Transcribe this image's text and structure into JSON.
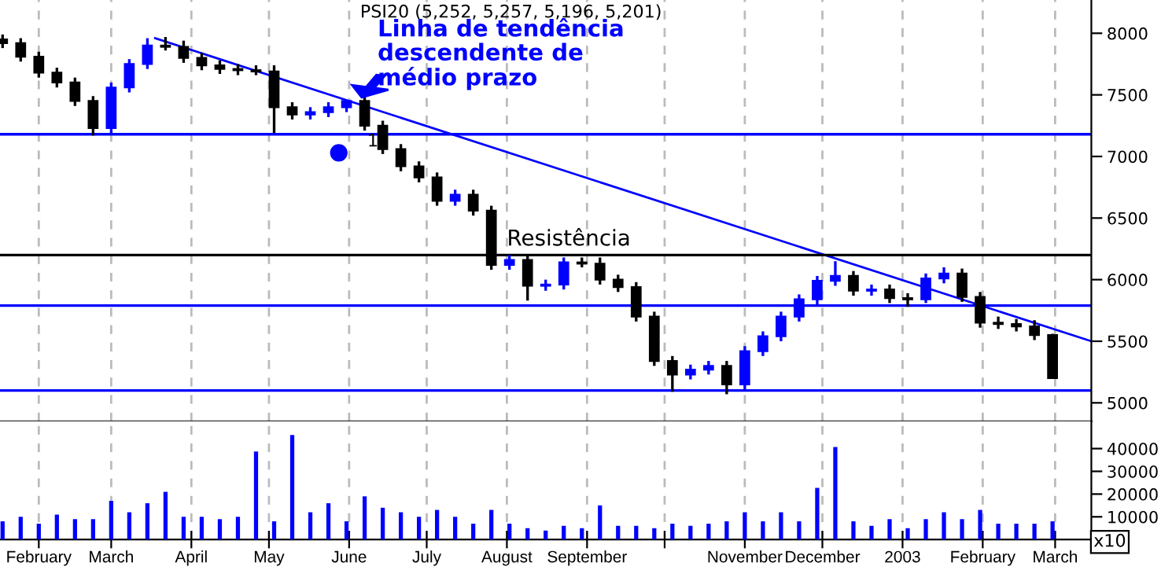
{
  "chart_data": [
    {
      "type": "candlestick",
      "title": "PSI20 (5,252, 5,257, 5,196, 5,201)",
      "x": [
        "2002-01-18",
        "2002-01-25",
        "2002-02-01",
        "2002-02-08",
        "2002-02-15",
        "2002-02-22",
        "2002-03-01",
        "2002-03-08",
        "2002-03-15",
        "2002-03-22",
        "2002-03-29",
        "2002-04-05",
        "2002-04-12",
        "2002-04-19",
        "2002-04-26",
        "2002-05-03",
        "2002-05-10",
        "2002-05-17",
        "2002-05-24",
        "2002-05-31",
        "2002-06-07",
        "2002-06-14",
        "2002-06-21",
        "2002-06-28",
        "2002-07-05",
        "2002-07-12",
        "2002-07-19",
        "2002-07-26",
        "2002-08-02",
        "2002-08-09",
        "2002-08-16",
        "2002-08-23",
        "2002-08-30",
        "2002-09-06",
        "2002-09-13",
        "2002-09-20",
        "2002-09-27",
        "2002-10-04",
        "2002-10-11",
        "2002-10-18",
        "2002-10-25",
        "2002-11-01",
        "2002-11-08",
        "2002-11-15",
        "2002-11-22",
        "2002-11-29",
        "2002-12-06",
        "2002-12-13",
        "2002-12-20",
        "2002-12-27",
        "2003-01-03",
        "2003-01-10",
        "2003-01-17",
        "2003-01-24",
        "2003-01-31",
        "2003-02-07",
        "2003-02-14",
        "2003-02-21",
        "2003-02-28"
      ],
      "ohlc": [
        [
          7950,
          7990,
          7880,
          7920
        ],
        [
          7920,
          7960,
          7770,
          7810
        ],
        [
          7810,
          7850,
          7640,
          7680
        ],
        [
          7680,
          7720,
          7560,
          7600
        ],
        [
          7600,
          7640,
          7410,
          7450
        ],
        [
          7450,
          7490,
          7170,
          7230
        ],
        [
          7230,
          7600,
          7190,
          7560
        ],
        [
          7560,
          7790,
          7520,
          7750
        ],
        [
          7750,
          7960,
          7710,
          7900
        ],
        [
          7900,
          7970,
          7860,
          7890
        ],
        [
          7890,
          7940,
          7760,
          7800
        ],
        [
          7800,
          7840,
          7700,
          7740
        ],
        [
          7740,
          7780,
          7670,
          7710
        ],
        [
          7710,
          7750,
          7660,
          7700
        ],
        [
          7700,
          7740,
          7660,
          7690
        ],
        [
          7690,
          7740,
          7190,
          7400
        ],
        [
          7400,
          7440,
          7300,
          7340
        ],
        [
          7340,
          7400,
          7300,
          7360
        ],
        [
          7360,
          7440,
          7320,
          7400
        ],
        [
          7400,
          7460,
          7360,
          7450
        ],
        [
          7450,
          7490,
          7210,
          7250
        ],
        [
          7250,
          7290,
          7020,
          7060
        ],
        [
          7060,
          7100,
          6880,
          6920
        ],
        [
          6920,
          6960,
          6790,
          6830
        ],
        [
          6830,
          6870,
          6600,
          6640
        ],
        [
          6640,
          6730,
          6600,
          6690
        ],
        [
          6690,
          6730,
          6520,
          6560
        ],
        [
          6560,
          6600,
          6080,
          6120
        ],
        [
          6120,
          6200,
          6080,
          6160
        ],
        [
          6160,
          6200,
          5830,
          5950
        ],
        [
          5950,
          6000,
          5910,
          5960
        ],
        [
          5960,
          6180,
          5920,
          6140
        ],
        [
          6140,
          6180,
          6100,
          6130
        ],
        [
          6130,
          6180,
          5960,
          6000
        ],
        [
          6000,
          6040,
          5900,
          5940
        ],
        [
          5940,
          5980,
          5660,
          5700
        ],
        [
          5700,
          5740,
          5300,
          5340
        ],
        [
          5340,
          5380,
          5090,
          5230
        ],
        [
          5230,
          5310,
          5190,
          5270
        ],
        [
          5270,
          5340,
          5230,
          5300
        ],
        [
          5300,
          5340,
          5070,
          5150
        ],
        [
          5150,
          5460,
          5110,
          5420
        ],
        [
          5420,
          5580,
          5380,
          5540
        ],
        [
          5540,
          5740,
          5500,
          5700
        ],
        [
          5700,
          5880,
          5660,
          5840
        ],
        [
          5840,
          6030,
          5800,
          5990
        ],
        [
          5990,
          6150,
          5950,
          6030
        ],
        [
          6030,
          6070,
          5870,
          5910
        ],
        [
          5910,
          5960,
          5870,
          5920
        ],
        [
          5920,
          5960,
          5810,
          5850
        ],
        [
          5850,
          5890,
          5780,
          5840
        ],
        [
          5840,
          6050,
          5810,
          6010
        ],
        [
          6010,
          6100,
          5970,
          6050
        ],
        [
          6050,
          6090,
          5820,
          5860
        ],
        [
          5860,
          5900,
          5610,
          5650
        ],
        [
          5650,
          5700,
          5600,
          5640
        ],
        [
          5640,
          5680,
          5580,
          5620
        ],
        [
          5620,
          5670,
          5510,
          5550
        ],
        [
          5550,
          5560,
          5196,
          5201
        ]
      ],
      "colors": [
        "#000000",
        "#000000",
        "#000000",
        "#000000",
        "#000000",
        "#000000",
        "#0000ff",
        "#0000ff",
        "#0000ff",
        "#000000",
        "#000000",
        "#000000",
        "#000000",
        "#000000",
        "#000000",
        "#000000",
        "#000000",
        "#0000ff",
        "#0000ff",
        "#0000ff",
        "#000000",
        "#000000",
        "#000000",
        "#000000",
        "#000000",
        "#0000ff",
        "#000000",
        "#000000",
        "#0000ff",
        "#000000",
        "#0000ff",
        "#0000ff",
        "#000000",
        "#000000",
        "#000000",
        "#000000",
        "#000000",
        "#000000",
        "#0000ff",
        "#0000ff",
        "#000000",
        "#0000ff",
        "#0000ff",
        "#0000ff",
        "#0000ff",
        "#0000ff",
        "#0000ff",
        "#000000",
        "#0000ff",
        "#000000",
        "#000000",
        "#0000ff",
        "#0000ff",
        "#000000",
        "#000000",
        "#000000",
        "#000000",
        "#000000",
        "#000000"
      ],
      "series": [
        {
          "type": "line",
          "x": [
            "2002-03-18",
            "2003-03-15"
          ],
          "values": [
            7960,
            5500
          ],
          "color": "#0000ff"
        }
      ],
      "ref_lines": [
        {
          "axis": "y",
          "value": 7180,
          "label": null,
          "color": "#0000ff"
        },
        {
          "axis": "y",
          "value": 6200,
          "label": "Resistência",
          "color": "#000000"
        },
        {
          "axis": "y",
          "value": 5790,
          "label": null,
          "color": "#0000ff"
        },
        {
          "axis": "y",
          "value": 5100,
          "label": null,
          "color": "#0000ff"
        }
      ],
      "annotations": [
        "Linha de tendência\ndescendente de\nmédio prazo",
        {
          "text": "1",
          "x": "2002-06-08",
          "y": 7120
        }
      ],
      "xlim": [
        "2002-01-17",
        "2003-03-15"
      ],
      "ylim": [
        4850,
        8270
      ],
      "yticks": [
        5000,
        5500,
        6000,
        6500,
        7000,
        7500,
        8000
      ],
      "xticks": [
        {
          "value": "2002-02-01",
          "label": null
        },
        {
          "value": "2002-03-01",
          "label": null
        },
        {
          "value": "2002-04-01",
          "label": null
        },
        {
          "value": "2002-05-01",
          "label": null
        },
        {
          "value": "2002-06-01",
          "label": null
        },
        {
          "value": "2002-07-01",
          "label": null
        },
        {
          "value": "2002-08-01",
          "label": null
        },
        {
          "value": "2002-09-01",
          "label": null
        },
        {
          "value": "2002-10-01",
          "label": null
        },
        {
          "value": "2002-11-01",
          "label": null
        },
        {
          "value": "2002-12-01",
          "label": null
        },
        {
          "value": "2003-01-01",
          "label": null
        },
        {
          "value": "2003-02-01",
          "label": null
        },
        {
          "value": "2003-03-01",
          "label": null
        }
      ],
      "grid": "x",
      "tick_labels": "y"
    },
    {
      "type": "bar",
      "color": "#0000ff",
      "x": [
        "2002-01-18",
        "2002-01-25",
        "2002-02-01",
        "2002-02-08",
        "2002-02-15",
        "2002-02-22",
        "2002-03-01",
        "2002-03-08",
        "2002-03-15",
        "2002-03-22",
        "2002-03-29",
        "2002-04-05",
        "2002-04-12",
        "2002-04-19",
        "2002-04-26",
        "2002-05-03",
        "2002-05-10",
        "2002-05-17",
        "2002-05-24",
        "2002-05-31",
        "2002-06-07",
        "2002-06-14",
        "2002-06-21",
        "2002-06-28",
        "2002-07-05",
        "2002-07-12",
        "2002-07-19",
        "2002-07-26",
        "2002-08-02",
        "2002-08-09",
        "2002-08-16",
        "2002-08-23",
        "2002-08-30",
        "2002-09-06",
        "2002-09-13",
        "2002-09-20",
        "2002-09-27",
        "2002-10-04",
        "2002-10-11",
        "2002-10-18",
        "2002-10-25",
        "2002-11-01",
        "2002-11-08",
        "2002-11-15",
        "2002-11-22",
        "2002-11-29",
        "2002-12-06",
        "2002-12-13",
        "2002-12-20",
        "2002-12-27",
        "2003-01-03",
        "2003-01-10",
        "2003-01-17",
        "2003-01-24",
        "2003-01-31",
        "2003-02-07",
        "2003-02-14",
        "2003-02-21",
        "2003-02-28"
      ],
      "values": [
        8000,
        10000,
        7000,
        11000,
        9000,
        9000,
        17000,
        12000,
        16000,
        21000,
        10000,
        10000,
        9000,
        10000,
        38700,
        8000,
        46000,
        12000,
        16000,
        8000,
        19000,
        14000,
        12000,
        10000,
        13000,
        10000,
        7000,
        13000,
        7000,
        5000,
        4000,
        6000,
        5000,
        15000,
        6000,
        6000,
        5000,
        7000,
        6000,
        7000,
        8000,
        12000,
        8000,
        12000,
        8000,
        22700,
        40700,
        8000,
        6000,
        9000,
        5000,
        9000,
        12000,
        9000,
        13000,
        7000,
        7000,
        7000,
        8000
      ],
      "annotations": [
        "x10"
      ],
      "xlim": [
        "2002-01-17",
        "2003-03-15"
      ],
      "ylim": [
        0,
        52000
      ],
      "yticks": [
        10000,
        20000,
        30000,
        40000
      ],
      "xticks": [
        {
          "value": "2002-02-01",
          "label": "February"
        },
        {
          "value": "2002-03-01",
          "label": "March"
        },
        {
          "value": "2002-04-01",
          "label": "April"
        },
        {
          "value": "2002-05-01",
          "label": "May"
        },
        {
          "value": "2002-06-01",
          "label": "June"
        },
        {
          "value": "2002-07-01",
          "label": "July"
        },
        {
          "value": "2002-08-01",
          "label": "August"
        },
        {
          "value": "2002-09-01",
          "label": "September"
        },
        {
          "value": "2002-10-01",
          "label": null
        },
        {
          "value": "2002-11-01",
          "label": "November"
        },
        {
          "value": "2002-12-01",
          "label": "December"
        },
        {
          "value": "2003-01-01",
          "label": "2003"
        },
        {
          "value": "2003-02-01",
          "label": "February"
        },
        {
          "value": "2003-03-01",
          "label": "March"
        }
      ],
      "grid": "x"
    }
  ]
}
